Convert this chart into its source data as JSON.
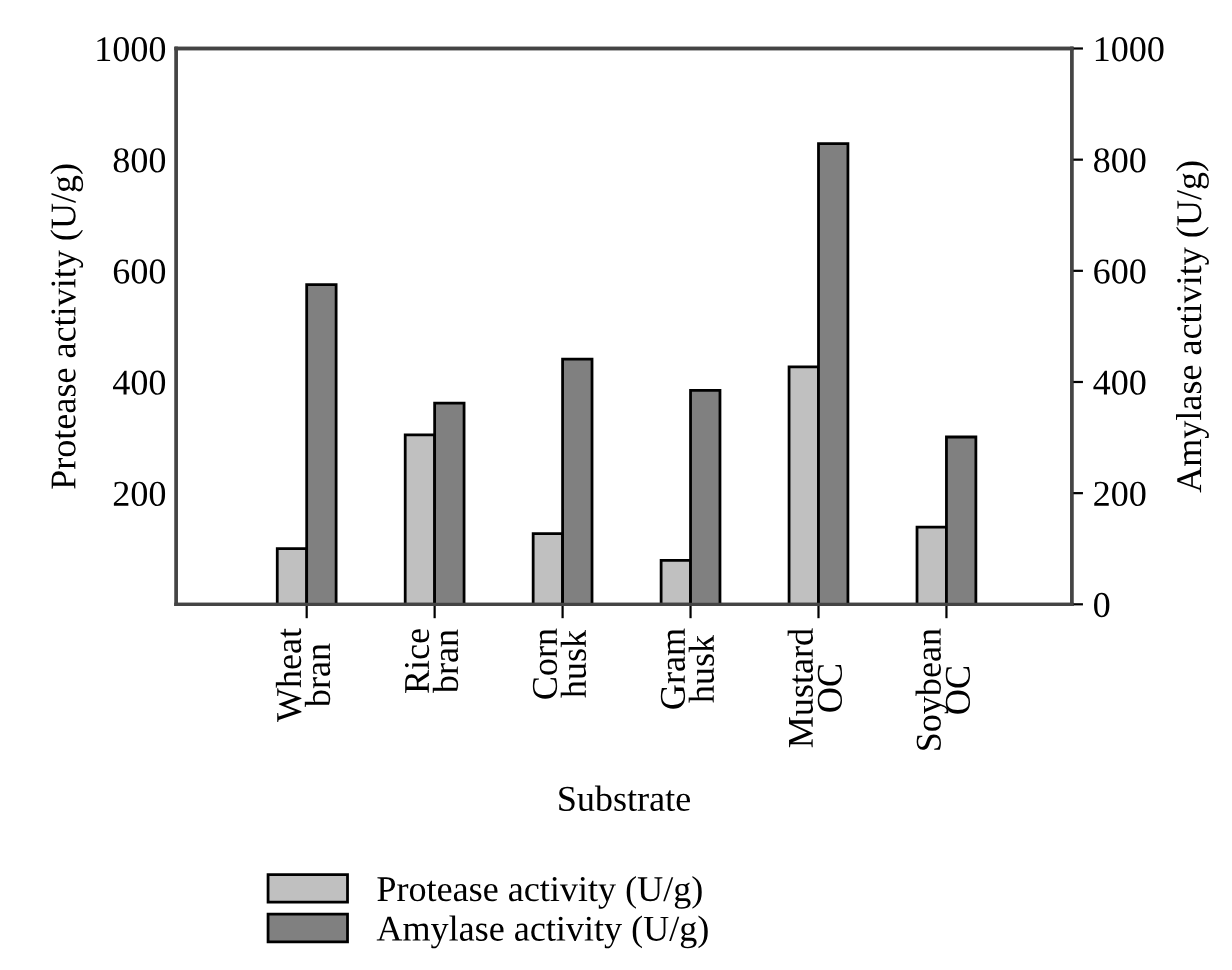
{
  "chart_data": {
    "type": "bar",
    "xlabel": "Substrate",
    "ylabel": "Protease activity (U/g)",
    "y2label": "Amylase activity (U/g)",
    "categories": [
      "Wheat\nbran",
      "Rice\nbran",
      "Corn\nhusk",
      "Gram\nhusk",
      "Mustard\nOC",
      "Soybean\nOC"
    ],
    "series": [
      {
        "name": "Protease activity (U/g)",
        "color": "#c0c0c0",
        "values": [
          100,
          305,
          127,
          79,
          427,
          139
        ]
      },
      {
        "name": "Amylase activity (U/g)",
        "color": "#808080",
        "axis": "y2",
        "values": [
          575,
          362,
          441,
          385,
          829,
          301
        ]
      }
    ],
    "ylim": [
      0,
      1000
    ],
    "yticks": [
      200,
      400,
      600,
      800,
      1000
    ],
    "y2lim": [
      0,
      1000
    ],
    "y2ticks": [
      0,
      200,
      400,
      600,
      800,
      1000
    ],
    "legend": "bottom left",
    "grid": false
  }
}
